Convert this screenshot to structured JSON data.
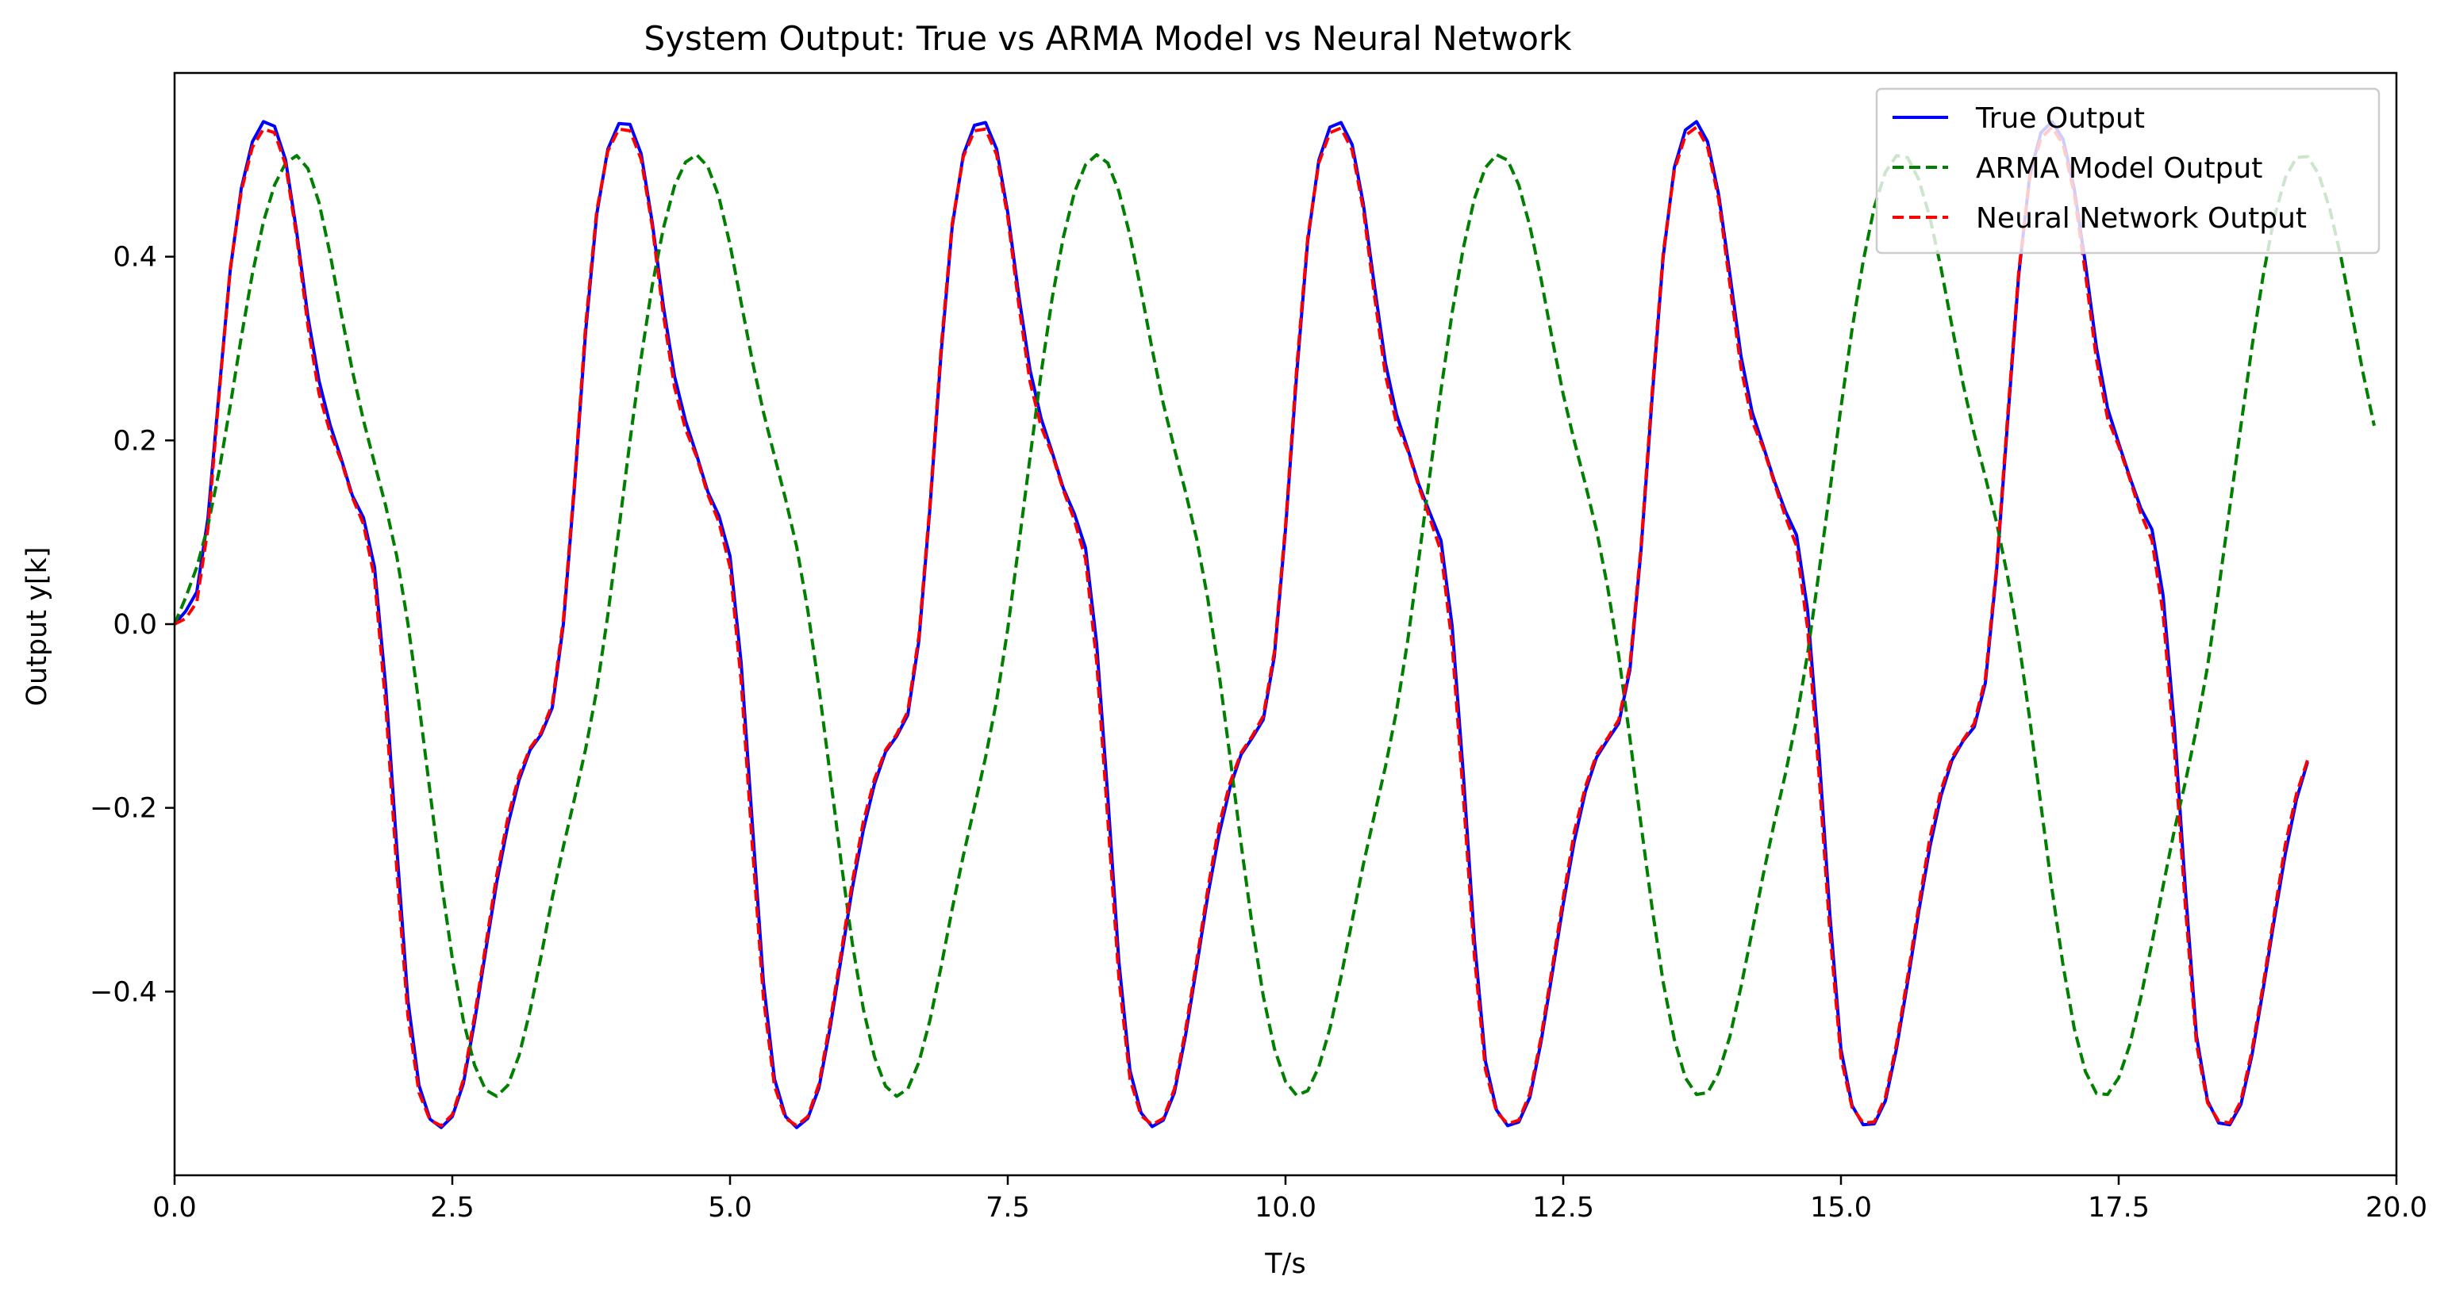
{
  "chart_data": {
    "type": "line",
    "title": "System Output: True vs ARMA Model vs Neural Network",
    "xlabel": "T/s",
    "ylabel": "Output y[k]",
    "xlim": [
      0,
      20
    ],
    "ylim": [
      -0.6,
      0.6
    ],
    "x_ticks": [
      0.0,
      2.5,
      5.0,
      7.5,
      10.0,
      12.5,
      15.0,
      17.5,
      20.0
    ],
    "x_tick_labels": [
      "0.0",
      "2.5",
      "5.0",
      "7.5",
      "10.0",
      "12.5",
      "15.0",
      "17.5",
      "20.0"
    ],
    "y_ticks": [
      -0.4,
      -0.2,
      0.0,
      0.2,
      0.4
    ],
    "y_tick_labels": [
      "−0.4",
      "−0.2",
      "0.0",
      "0.2",
      "0.4"
    ],
    "grid": false,
    "legend_position": "top-right",
    "x_step": 0.1,
    "series": [
      {
        "name": "True Output",
        "color": "#0000ff",
        "style": "solid",
        "values": [
          0.0,
          0.014,
          0.035,
          0.115,
          0.252,
          0.384,
          0.474,
          0.525,
          0.547,
          0.542,
          0.505,
          0.426,
          0.335,
          0.265,
          0.217,
          0.18,
          0.14,
          0.116,
          0.062,
          -0.067,
          -0.243,
          -0.409,
          -0.502,
          -0.539,
          -0.548,
          -0.536,
          -0.5,
          -0.433,
          -0.356,
          -0.281,
          -0.219,
          -0.17,
          -0.137,
          -0.12,
          -0.091,
          0.0,
          0.15,
          0.318,
          0.446,
          0.517,
          0.545,
          0.544,
          0.512,
          0.437,
          0.346,
          0.27,
          0.221,
          0.184,
          0.144,
          0.118,
          0.074,
          -0.042,
          -0.216,
          -0.389,
          -0.495,
          -0.536,
          -0.548,
          -0.538,
          -0.505,
          -0.44,
          -0.364,
          -0.288,
          -0.224,
          -0.174,
          -0.139,
          -0.122,
          -0.099,
          -0.018,
          0.127,
          0.295,
          0.433,
          0.511,
          0.543,
          0.546,
          0.517,
          0.448,
          0.357,
          0.277,
          0.224,
          0.187,
          0.148,
          0.12,
          0.083,
          -0.021,
          -0.187,
          -0.367,
          -0.486,
          -0.532,
          -0.547,
          -0.54,
          -0.51,
          -0.448,
          -0.373,
          -0.296,
          -0.23,
          -0.178,
          -0.142,
          -0.124,
          -0.104,
          -0.035,
          0.103,
          0.271,
          0.417,
          0.505,
          0.541,
          0.546,
          0.522,
          0.458,
          0.369,
          0.284,
          0.228,
          0.191,
          0.152,
          0.121,
          0.091,
          -0.002,
          -0.162,
          -0.343,
          -0.476,
          -0.529,
          -0.546,
          -0.542,
          -0.515,
          -0.455,
          -0.381,
          -0.305,
          -0.236,
          -0.182,
          -0.145,
          -0.126,
          -0.108,
          -0.05,
          0.08,
          0.246,
          0.4,
          0.497,
          0.538,
          0.547,
          0.525,
          0.467,
          0.381,
          0.292,
          0.231,
          0.194,
          0.156,
          0.123,
          0.097,
          0.015,
          -0.136,
          -0.316,
          -0.463,
          -0.524,
          -0.545,
          -0.544,
          -0.519,
          -0.462,
          -0.39,
          -0.313,
          -0.243,
          -0.187,
          -0.148,
          -0.127,
          -0.112,
          -0.064,
          0.057,
          0.22,
          0.38,
          0.489,
          0.535,
          0.547,
          0.528,
          0.474,
          0.393,
          0.301,
          0.235,
          0.197,
          0.16,
          0.126,
          0.103,
          0.031,
          -0.109,
          -0.288,
          -0.448,
          -0.519,
          -0.543,
          -0.545,
          -0.523,
          -0.469,
          -0.398,
          -0.322,
          -0.25,
          -0.191,
          -0.15
        ]
      },
      {
        "name": "ARMA Model Output",
        "color": "#007f00",
        "style": "dashed",
        "values": [
          0.0,
          0.029,
          0.062,
          0.107,
          0.166,
          0.237,
          0.312,
          0.381,
          0.438,
          0.478,
          0.502,
          0.51,
          0.496,
          0.459,
          0.403,
          0.338,
          0.276,
          0.222,
          0.175,
          0.129,
          0.074,
          0.001,
          -0.087,
          -0.183,
          -0.279,
          -0.364,
          -0.432,
          -0.48,
          -0.507,
          -0.514,
          -0.502,
          -0.47,
          -0.421,
          -0.361,
          -0.298,
          -0.242,
          -0.19,
          -0.136,
          -0.072,
          0.01,
          0.104,
          0.2,
          0.29,
          0.369,
          0.431,
          0.477,
          0.503,
          0.511,
          0.498,
          0.465,
          0.413,
          0.35,
          0.287,
          0.231,
          0.183,
          0.136,
          0.084,
          0.015,
          -0.069,
          -0.163,
          -0.259,
          -0.347,
          -0.419,
          -0.471,
          -0.503,
          -0.514,
          -0.506,
          -0.477,
          -0.431,
          -0.373,
          -0.31,
          -0.252,
          -0.199,
          -0.145,
          -0.083,
          -0.005,
          0.087,
          0.181,
          0.273,
          0.355,
          0.421,
          0.47,
          0.5,
          0.511,
          0.502,
          0.471,
          0.423,
          0.363,
          0.299,
          0.24,
          0.191,
          0.144,
          0.093,
          0.028,
          -0.052,
          -0.144,
          -0.239,
          -0.328,
          -0.405,
          -0.462,
          -0.498,
          -0.513,
          -0.508,
          -0.482,
          -0.44,
          -0.384,
          -0.323,
          -0.262,
          -0.208,
          -0.155,
          -0.094,
          -0.018,
          0.071,
          0.163,
          0.255,
          0.339,
          0.409,
          0.463,
          0.497,
          0.511,
          0.505,
          0.478,
          0.433,
          0.376,
          0.311,
          0.25,
          0.199,
          0.152,
          0.102,
          0.04,
          -0.035,
          -0.124,
          -0.218,
          -0.309,
          -0.39,
          -0.452,
          -0.494,
          -0.512,
          -0.51,
          -0.488,
          -0.449,
          -0.395,
          -0.335,
          -0.273,
          -0.216,
          -0.163,
          -0.104,
          -0.032,
          0.055,
          0.145,
          0.236,
          0.321,
          0.395,
          0.454,
          0.492,
          0.51,
          0.508,
          0.484,
          0.443,
          0.388,
          0.324,
          0.261,
          0.207,
          0.16,
          0.111,
          0.052,
          -0.018,
          -0.104,
          -0.197,
          -0.289,
          -0.372,
          -0.44,
          -0.487,
          -0.511,
          -0.512,
          -0.494,
          -0.458,
          -0.406,
          -0.347,
          -0.285,
          -0.225,
          -0.172,
          -0.114,
          -0.046,
          0.038,
          0.127,
          0.216,
          0.302,
          0.379,
          0.443,
          0.486,
          0.508,
          0.509,
          0.49,
          0.452,
          0.4,
          0.337,
          0.273,
          0.216
        ]
      },
      {
        "name": "Neural Network Output",
        "color": "#ff0000",
        "style": "dashed",
        "values": [
          0.0,
          0.006,
          0.024,
          0.104,
          0.249,
          0.386,
          0.471,
          0.519,
          0.539,
          0.535,
          0.5,
          0.421,
          0.325,
          0.251,
          0.209,
          0.178,
          0.138,
          0.109,
          0.05,
          -0.087,
          -0.267,
          -0.426,
          -0.51,
          -0.54,
          -0.546,
          -0.534,
          -0.496,
          -0.427,
          -0.35,
          -0.273,
          -0.211,
          -0.165,
          -0.135,
          -0.118,
          -0.087,
          0.005,
          0.154,
          0.325,
          0.45,
          0.515,
          0.539,
          0.537,
          0.506,
          0.433,
          0.337,
          0.258,
          0.212,
          0.182,
          0.141,
          0.111,
          0.062,
          -0.062,
          -0.24,
          -0.406,
          -0.503,
          -0.538,
          -0.546,
          -0.536,
          -0.501,
          -0.434,
          -0.358,
          -0.281,
          -0.215,
          -0.169,
          -0.137,
          -0.12,
          -0.095,
          -0.013,
          0.131,
          0.301,
          0.436,
          0.509,
          0.537,
          0.539,
          0.511,
          0.443,
          0.347,
          0.264,
          0.215,
          0.185,
          0.146,
          0.113,
          0.071,
          -0.041,
          -0.212,
          -0.385,
          -0.495,
          -0.535,
          -0.545,
          -0.538,
          -0.506,
          -0.442,
          -0.367,
          -0.289,
          -0.22,
          -0.173,
          -0.14,
          -0.122,
          -0.1,
          -0.03,
          0.107,
          0.278,
          0.421,
          0.502,
          0.535,
          0.54,
          0.516,
          0.452,
          0.358,
          0.271,
          0.218,
          0.189,
          0.15,
          0.115,
          0.079,
          -0.022,
          -0.186,
          -0.361,
          -0.485,
          -0.531,
          -0.544,
          -0.54,
          -0.511,
          -0.45,
          -0.375,
          -0.298,
          -0.226,
          -0.177,
          -0.142,
          -0.124,
          -0.104,
          -0.045,
          0.084,
          0.252,
          0.404,
          0.494,
          0.532,
          0.541,
          0.519,
          0.462,
          0.37,
          0.279,
          0.221,
          0.192,
          0.154,
          0.117,
          0.085,
          -0.005,
          -0.16,
          -0.335,
          -0.472,
          -0.526,
          -0.543,
          -0.542,
          -0.515,
          -0.457,
          -0.384,
          -0.307,
          -0.233,
          -0.181,
          -0.145,
          -0.126,
          -0.108,
          -0.059,
          0.061,
          0.226,
          0.384,
          0.486,
          0.529,
          0.541,
          0.522,
          0.469,
          0.382,
          0.288,
          0.224,
          0.194,
          0.158,
          0.12,
          0.091,
          0.011,
          -0.133,
          -0.307,
          -0.457,
          -0.521,
          -0.541,
          -0.543,
          -0.519,
          -0.464,
          -0.393,
          -0.316,
          -0.24,
          -0.185,
          -0.148
        ]
      }
    ]
  }
}
